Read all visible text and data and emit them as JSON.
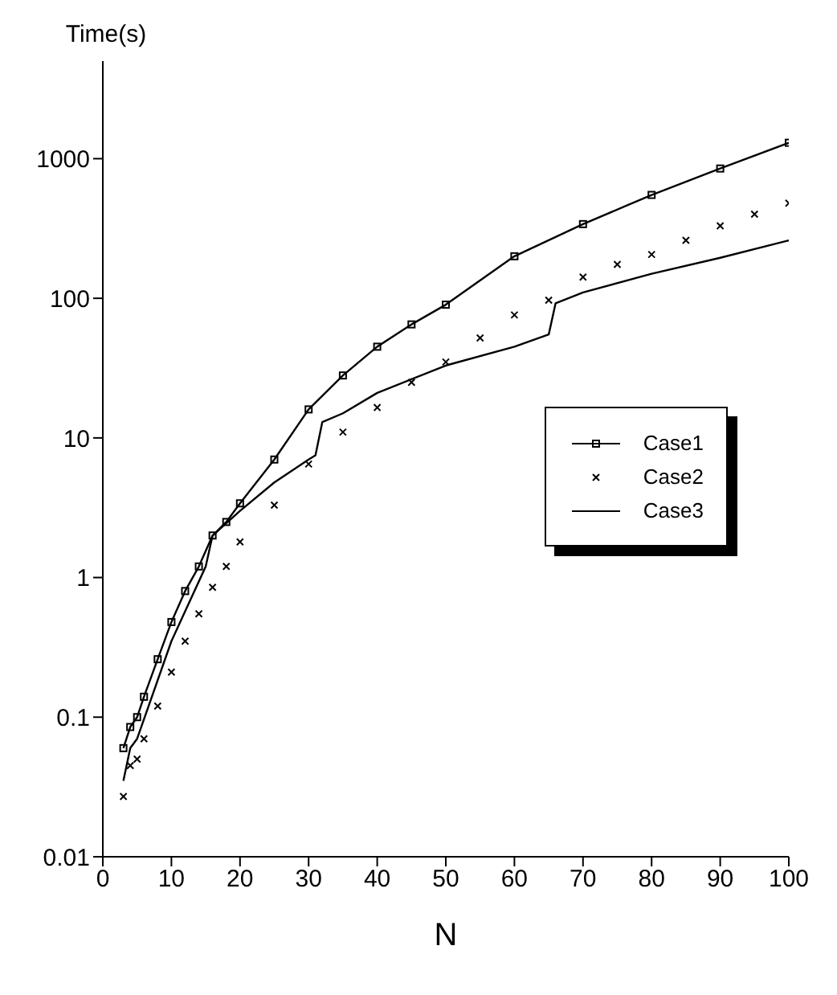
{
  "chart_data": {
    "type": "line",
    "xlabel": "N",
    "ylabel": "Time(s)",
    "log": "y",
    "grid": false,
    "legend": "right",
    "xlim": [
      0,
      100
    ],
    "xticks": [
      0,
      10,
      20,
      30,
      40,
      50,
      60,
      70,
      80,
      90,
      100
    ],
    "ylim": [
      0.01,
      5000
    ],
    "yticks": [
      0.01,
      0.1,
      1,
      10,
      100,
      1000
    ],
    "series": [
      {
        "name": "Case1",
        "marker": "square",
        "color": "#000000",
        "x": [
          3,
          4,
          5,
          6,
          8,
          10,
          12,
          14,
          16,
          18,
          20,
          25,
          30,
          35,
          40,
          45,
          50,
          60,
          70,
          80,
          90,
          100
        ],
        "values": [
          0.06,
          0.085,
          0.1,
          0.14,
          0.26,
          0.48,
          0.8,
          1.2,
          2.0,
          2.5,
          3.4,
          7,
          16,
          28,
          45,
          65,
          90,
          200,
          340,
          550,
          850,
          1300
        ]
      },
      {
        "name": "Case2",
        "type": "scatter",
        "marker": "cross",
        "color": "#000000",
        "x": [
          3,
          4,
          5,
          6,
          8,
          10,
          12,
          14,
          16,
          18,
          20,
          25,
          30,
          35,
          40,
          45,
          50,
          55,
          60,
          65,
          70,
          75,
          80,
          85,
          90,
          95,
          100
        ],
        "values": [
          0.027,
          0.045,
          0.05,
          0.07,
          0.12,
          0.21,
          0.35,
          0.55,
          0.85,
          1.2,
          1.8,
          3.3,
          6.5,
          11,
          16.5,
          25,
          35,
          52,
          76,
          97,
          142,
          175,
          206,
          260,
          330,
          400,
          480
        ]
      },
      {
        "name": "Case3",
        "marker": "none",
        "color": "#000000",
        "x": [
          3,
          4,
          5,
          10,
          15,
          16,
          20,
          25,
          30,
          31,
          32,
          35,
          40,
          50,
          60,
          65,
          66,
          70,
          80,
          90,
          100
        ],
        "values": [
          0.035,
          0.06,
          0.07,
          0.35,
          1.2,
          2.0,
          3.0,
          4.8,
          7,
          7.5,
          13,
          15,
          21,
          33,
          45,
          55,
          92,
          110,
          150,
          195,
          260
        ]
      }
    ]
  }
}
